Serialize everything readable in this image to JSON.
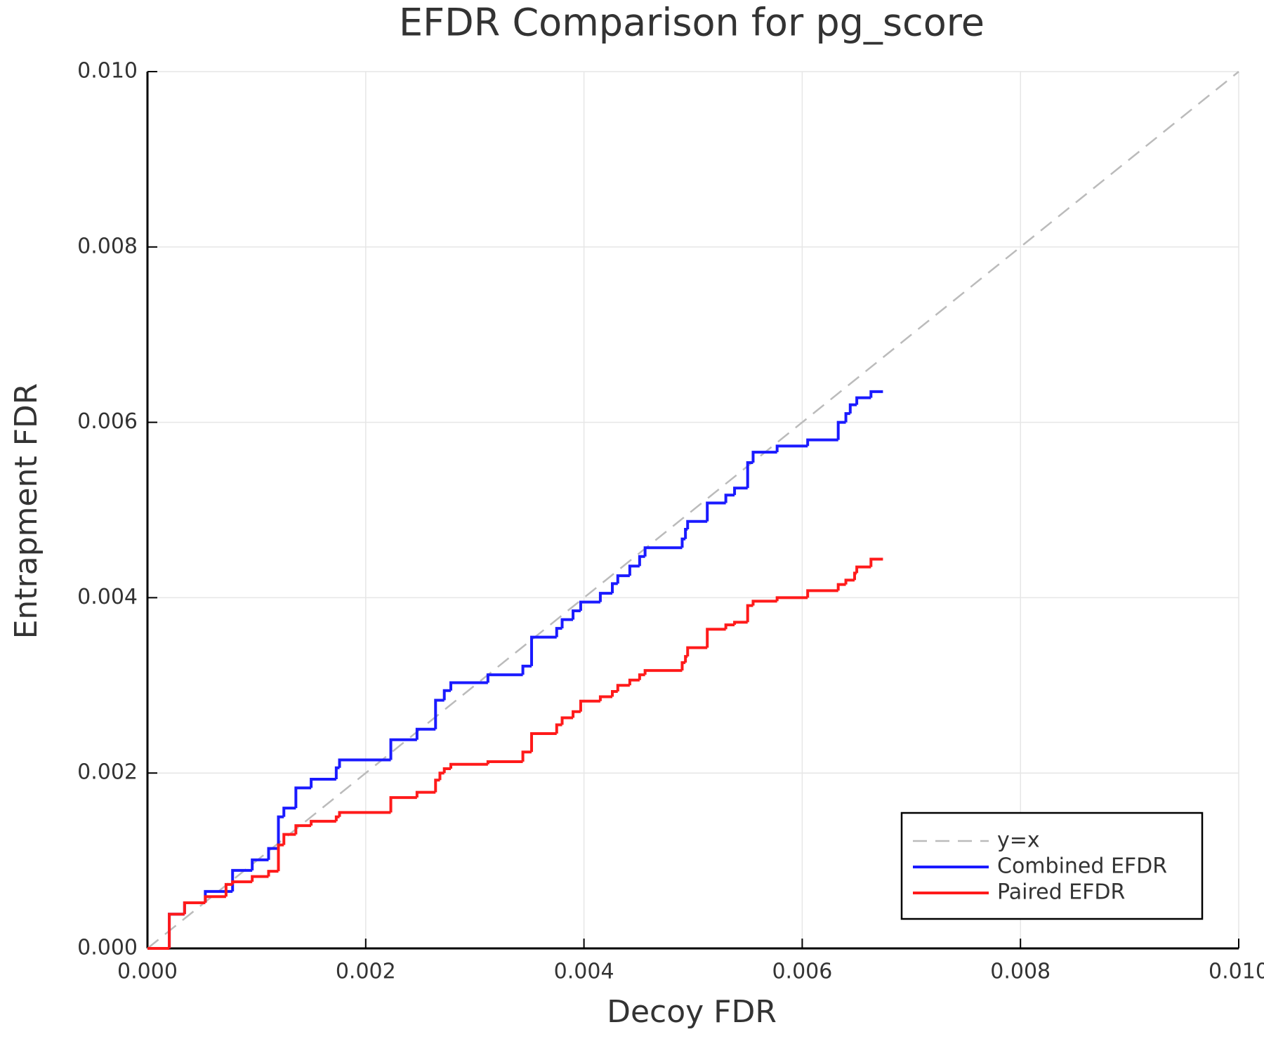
{
  "chart_data": {
    "type": "line",
    "title": "EFDR Comparison for pg_score",
    "x_label": "Decoy FDR",
    "y_label": "Entrapment FDR",
    "xlim": [
      0,
      0.01
    ],
    "ylim": [
      0,
      0.01
    ],
    "xticks": [
      {
        "value": 0,
        "label": "0.000"
      },
      {
        "value": 0.002,
        "label": "0.002"
      },
      {
        "value": 0.004,
        "label": "0.004"
      },
      {
        "value": 0.006,
        "label": "0.006"
      },
      {
        "value": 0.008,
        "label": "0.008"
      },
      {
        "value": 0.01,
        "label": "0.010"
      }
    ],
    "yticks": [
      {
        "value": 0,
        "label": "0.000"
      },
      {
        "value": 0.002,
        "label": "0.002"
      },
      {
        "value": 0.004,
        "label": "0.004"
      },
      {
        "value": 0.006,
        "label": "0.006"
      },
      {
        "value": 0.008,
        "label": "0.008"
      },
      {
        "value": 0.01,
        "label": "0.010"
      }
    ],
    "grid": true,
    "legend": "lower right",
    "series": [
      {
        "name": "y=x",
        "color": "#bbbbbb",
        "line_style": "dashed",
        "x": [
          0,
          0.01
        ],
        "values": [
          0,
          0.01
        ]
      },
      {
        "name": "Combined EFDR",
        "color": "#1a1aff",
        "line_style": "step",
        "x": [
          0,
          0.0002,
          0.00034,
          0.00053,
          0.00078,
          0.00096,
          0.00111,
          0.0012,
          0.00125,
          0.00136,
          0.0015,
          0.00173,
          0.00176,
          0.00223,
          0.00247,
          0.00264,
          0.00272,
          0.00278,
          0.00312,
          0.00344,
          0.00352,
          0.00375,
          0.0038,
          0.0039,
          0.00397,
          0.00415,
          0.00426,
          0.00431,
          0.00442,
          0.00451,
          0.00456,
          0.0049,
          0.00493,
          0.00495,
          0.00513,
          0.0053,
          0.00538,
          0.0055,
          0.00555,
          0.00577,
          0.00605,
          0.00633,
          0.0064,
          0.00644,
          0.0065,
          0.00663,
          0.00674
        ],
        "values": [
          0,
          0.00039,
          0.00052,
          0.00065,
          0.00089,
          0.00101,
          0.00114,
          0.0015,
          0.0016,
          0.00183,
          0.00193,
          0.00206,
          0.00215,
          0.00238,
          0.0025,
          0.00283,
          0.00294,
          0.00303,
          0.00312,
          0.00322,
          0.00355,
          0.00365,
          0.00375,
          0.00385,
          0.00395,
          0.00405,
          0.00416,
          0.00425,
          0.00436,
          0.00447,
          0.00457,
          0.00467,
          0.00478,
          0.00487,
          0.00508,
          0.00517,
          0.00525,
          0.00554,
          0.00566,
          0.00573,
          0.0058,
          0.006,
          0.0061,
          0.0062,
          0.00628,
          0.00635,
          0.00635
        ]
      },
      {
        "name": "Paired EFDR",
        "color": "#ff1a1a",
        "line_style": "step",
        "x": [
          0,
          0.0002,
          0.00034,
          0.00053,
          0.00072,
          0.00078,
          0.00096,
          0.00111,
          0.0012,
          0.00125,
          0.00136,
          0.0015,
          0.00173,
          0.00176,
          0.00223,
          0.00247,
          0.00264,
          0.00268,
          0.00272,
          0.00278,
          0.00312,
          0.00344,
          0.00352,
          0.00375,
          0.0038,
          0.0039,
          0.00397,
          0.00415,
          0.00426,
          0.00431,
          0.00442,
          0.00451,
          0.00456,
          0.0049,
          0.00493,
          0.00495,
          0.00513,
          0.0053,
          0.00538,
          0.0055,
          0.00555,
          0.00577,
          0.00605,
          0.00633,
          0.0064,
          0.00648,
          0.0065,
          0.00663,
          0.00674
        ],
        "values": [
          0,
          0.00039,
          0.00052,
          0.00059,
          0.00073,
          0.00076,
          0.00082,
          0.00088,
          0.00118,
          0.0013,
          0.0014,
          0.00145,
          0.0015,
          0.00155,
          0.00172,
          0.00178,
          0.00192,
          0.002,
          0.00205,
          0.0021,
          0.00213,
          0.00224,
          0.00245,
          0.00255,
          0.00263,
          0.0027,
          0.00282,
          0.00287,
          0.00293,
          0.003,
          0.00306,
          0.00312,
          0.00317,
          0.00326,
          0.00333,
          0.00343,
          0.00364,
          0.00369,
          0.00372,
          0.00391,
          0.00396,
          0.004,
          0.00408,
          0.00415,
          0.0042,
          0.00428,
          0.00435,
          0.00444,
          0.00444
        ]
      }
    ]
  }
}
